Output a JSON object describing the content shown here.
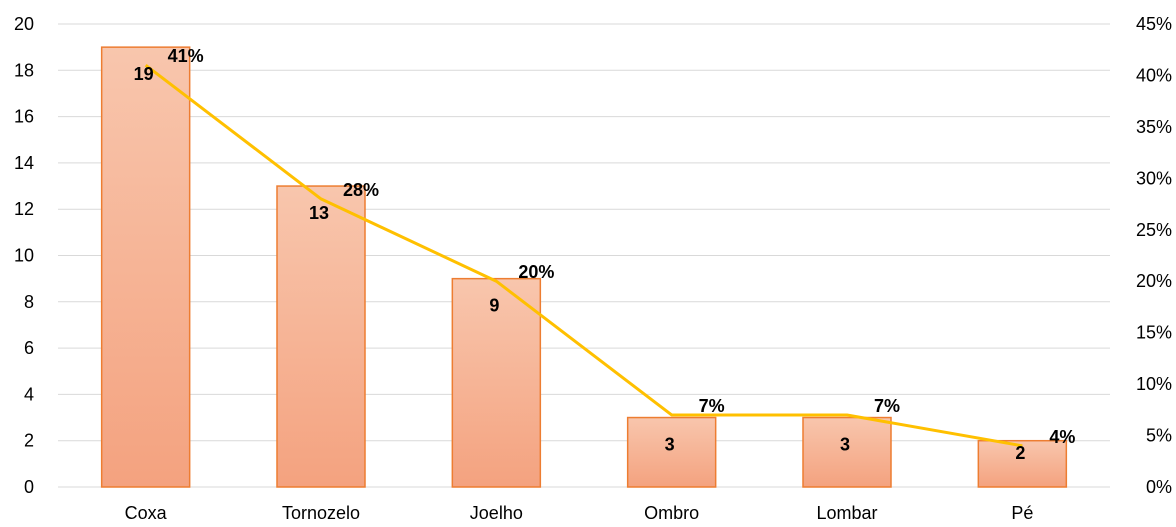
{
  "chart_data": {
    "type": "bar",
    "categories": [
      "Coxa",
      "Tornozelo",
      "Joelho",
      "Ombro",
      "Lombar",
      "Pé"
    ],
    "series": [
      {
        "type": "bar",
        "axis": "left",
        "values": [
          19,
          13,
          9,
          3,
          3,
          2
        ],
        "labels": [
          "19",
          "13",
          "9",
          "3",
          "3",
          "2"
        ]
      },
      {
        "type": "line",
        "axis": "right",
        "values": [
          41,
          28,
          20,
          7,
          7,
          4
        ],
        "labels": [
          "41%",
          "28%",
          "20%",
          "7%",
          "7%",
          "4%"
        ]
      }
    ],
    "y_left": {
      "min": 0,
      "max": 20,
      "step": 2,
      "ticks": [
        "0",
        "2",
        "4",
        "6",
        "8",
        "10",
        "12",
        "14",
        "16",
        "18",
        "20"
      ]
    },
    "y_right": {
      "min": 0,
      "max": 45,
      "step": 5,
      "ticks": [
        "0%",
        "5%",
        "10%",
        "15%",
        "20%",
        "25%",
        "30%",
        "35%",
        "40%",
        "45%"
      ]
    },
    "grid": true,
    "legend": "none",
    "title": "",
    "colors": {
      "bar_top": "#f8c6ad",
      "bar_bottom": "#f4a27f",
      "bar_border": "#ed7d31",
      "line": "#ffc000",
      "grid": "#d9d9d9"
    }
  }
}
